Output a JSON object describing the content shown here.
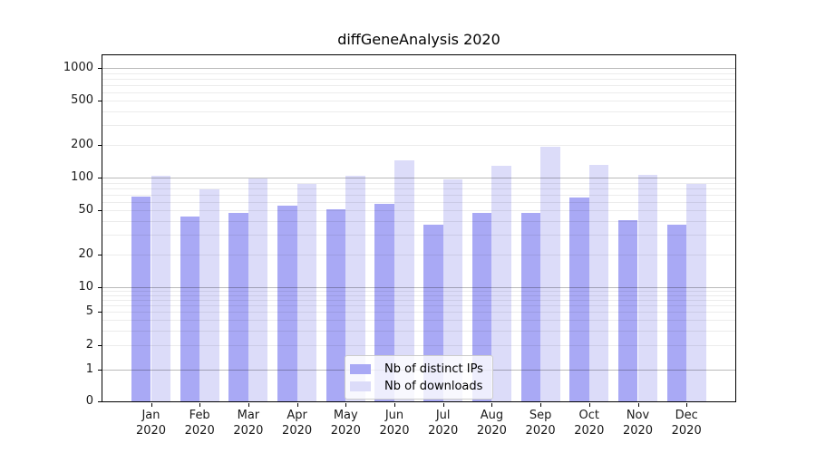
{
  "chart_data": {
    "type": "bar",
    "title": "diffGeneAnalysis 2020",
    "categories": [
      {
        "month": "Jan",
        "year": "2020"
      },
      {
        "month": "Feb",
        "year": "2020"
      },
      {
        "month": "Mar",
        "year": "2020"
      },
      {
        "month": "Apr",
        "year": "2020"
      },
      {
        "month": "May",
        "year": "2020"
      },
      {
        "month": "Jun",
        "year": "2020"
      },
      {
        "month": "Jul",
        "year": "2020"
      },
      {
        "month": "Aug",
        "year": "2020"
      },
      {
        "month": "Sep",
        "year": "2020"
      },
      {
        "month": "Oct",
        "year": "2020"
      },
      {
        "month": "Nov",
        "year": "2020"
      },
      {
        "month": "Dec",
        "year": "2020"
      }
    ],
    "series": [
      {
        "name": "Nb of distinct IPs",
        "color": "#a9a9f5",
        "values": [
          67,
          44,
          48,
          55,
          51,
          58,
          37,
          48,
          48,
          66,
          41,
          37
        ]
      },
      {
        "name": "Nb of downloads",
        "color": "#dcdcf9",
        "values": [
          103,
          78,
          99,
          87,
          103,
          145,
          97,
          127,
          190,
          130,
          106,
          88
        ]
      }
    ],
    "yscale": "log (linear segment below 1, zero shown)",
    "ytick_labels": [
      "0",
      "1",
      "2",
      "5",
      "10",
      "20",
      "50",
      "100",
      "200",
      "500",
      "1000"
    ],
    "ytick_values": [
      0,
      1,
      2,
      5,
      10,
      20,
      50,
      100,
      200,
      500,
      1000
    ],
    "ylim": [
      0,
      1300
    ],
    "xlabel": "",
    "ylabel": "",
    "grid": true,
    "legend_position": "lower center"
  }
}
